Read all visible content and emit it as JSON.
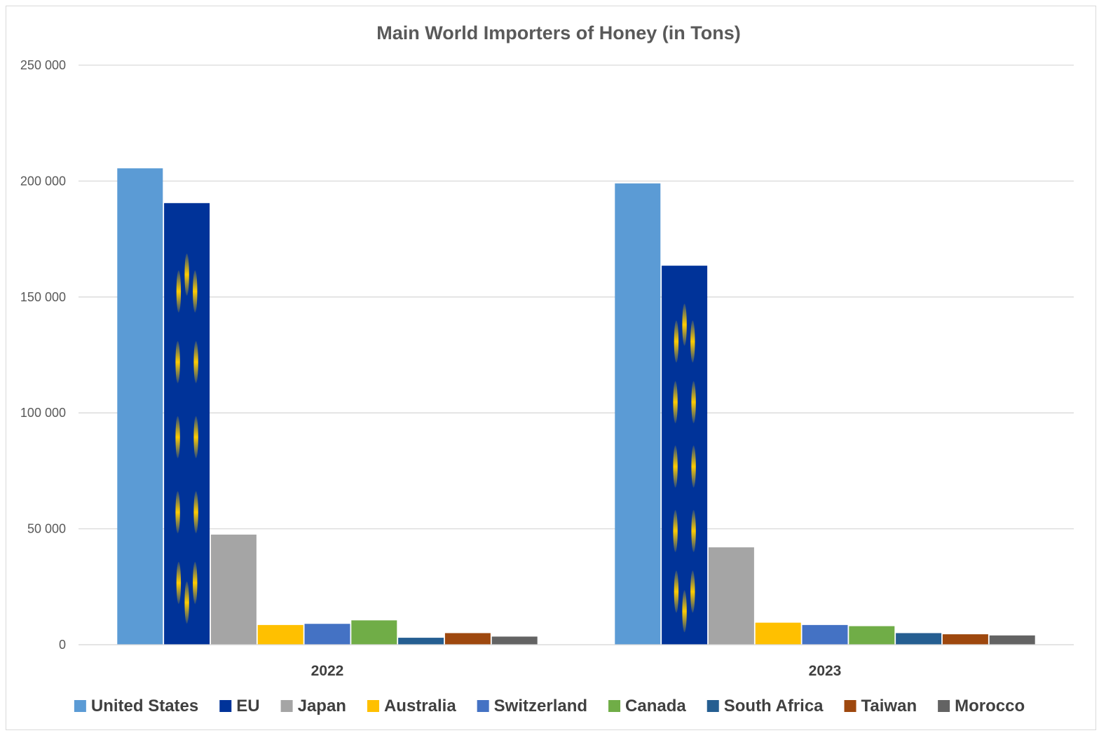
{
  "chart_data": {
    "type": "bar",
    "title": "Main World Importers of Honey (in Tons)",
    "xlabel": "",
    "ylabel": "",
    "categories": [
      "2022",
      "2023"
    ],
    "ylim": [
      0,
      250000
    ],
    "yticks": [
      0,
      50000,
      100000,
      150000,
      200000,
      250000
    ],
    "ytick_labels": [
      "0",
      "50 000",
      "100 000",
      "150 000",
      "200 000",
      "250 000"
    ],
    "grid": true,
    "legend_position": "bottom",
    "series": [
      {
        "name": "United States",
        "color": "#5b9bd5",
        "values": [
          205500,
          199000
        ]
      },
      {
        "name": "EU",
        "color": "#003399",
        "pattern": "eu-flag-stars",
        "values": [
          190500,
          163500
        ]
      },
      {
        "name": "Japan",
        "color": "#a5a5a5",
        "values": [
          47500,
          42000
        ]
      },
      {
        "name": "Australia",
        "color": "#ffc000",
        "values": [
          8500,
          9500
        ]
      },
      {
        "name": "Switzerland",
        "color": "#4472c4",
        "values": [
          9000,
          8500
        ]
      },
      {
        "name": "Canada",
        "color": "#70ad47",
        "values": [
          10500,
          8000
        ]
      },
      {
        "name": "South Africa",
        "color": "#255e91",
        "values": [
          3000,
          5000
        ]
      },
      {
        "name": "Taiwan",
        "color": "#9e480e",
        "values": [
          5000,
          4500
        ]
      },
      {
        "name": "Morocco",
        "color": "#636363",
        "values": [
          3500,
          4000
        ]
      }
    ]
  }
}
